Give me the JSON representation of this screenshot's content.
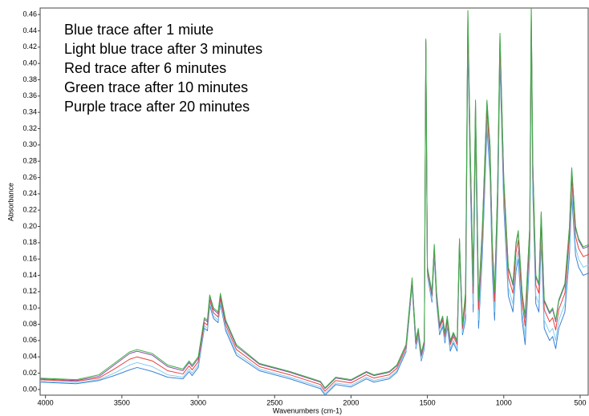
{
  "chart_data": {
    "type": "line",
    "xlabel": "Wavenumbers (cm-1)",
    "ylabel": "Absorbance",
    "annotations": [
      "Blue trace after 1 miute",
      "Light blue trace after 3 minutes",
      "Red trace after 6 minutes",
      "Green trace after 10 minutes",
      "Purple trace after 20 minutes"
    ],
    "xlim": [
      4035,
      442
    ],
    "ylim": [
      -0.007,
      0.468
    ],
    "xticks": [
      4000,
      3500,
      3000,
      2500,
      2000,
      1500,
      1000,
      500
    ],
    "yticks": [
      {
        "value": 0,
        "label": "0.00"
      },
      0.02,
      0.04,
      0.06,
      0.08,
      {
        "value": 0.1,
        "label": "0.10"
      },
      0.12,
      0.14,
      0.16,
      0.18,
      {
        "value": 0.2,
        "label": "0.20"
      },
      0.22,
      0.24,
      0.26,
      0.28,
      {
        "value": 0.3,
        "label": "0.30"
      },
      0.32,
      0.34,
      0.36,
      0.38,
      {
        "value": 0.4,
        "label": "0.40"
      },
      0.42,
      0.44,
      0.46
    ],
    "x": [
      4040,
      3800,
      3650,
      3550,
      3450,
      3400,
      3300,
      3200,
      3100,
      3060,
      3040,
      3000,
      2960,
      2940,
      2925,
      2900,
      2870,
      2855,
      2820,
      2750,
      2600,
      2400,
      2200,
      2170,
      2100,
      2000,
      1900,
      1850,
      1750,
      1700,
      1640,
      1600,
      1590,
      1575,
      1560,
      1540,
      1520,
      1510,
      1500,
      1470,
      1455,
      1440,
      1420,
      1400,
      1385,
      1370,
      1350,
      1330,
      1305,
      1290,
      1270,
      1250,
      1235,
      1220,
      1200,
      1185,
      1165,
      1140,
      1110,
      1090,
      1075,
      1060,
      1040,
      1025,
      1000,
      970,
      940,
      920,
      905,
      880,
      860,
      830,
      820,
      810,
      790,
      770,
      755,
      735,
      700,
      680,
      660,
      640,
      600,
      570,
      555,
      530,
      510,
      480,
      440
    ],
    "series": [
      {
        "color": "#3b82d6",
        "values": [
          0.009,
          0.007,
          0.011,
          0.017,
          0.024,
          0.027,
          0.022,
          0.015,
          0.013,
          0.022,
          0.017,
          0.027,
          0.075,
          0.072,
          0.103,
          0.087,
          0.082,
          0.105,
          0.072,
          0.042,
          0.023,
          0.013,
          0.001,
          -0.007,
          0.006,
          0.003,
          0.013,
          0.009,
          0.013,
          0.021,
          0.046,
          0.127,
          0.095,
          0.05,
          0.065,
          0.035,
          0.05,
          0.42,
          0.14,
          0.107,
          0.165,
          0.107,
          0.067,
          0.077,
          0.057,
          0.077,
          0.047,
          0.057,
          0.047,
          0.172,
          0.067,
          0.085,
          0.43,
          0.265,
          0.095,
          0.32,
          0.075,
          0.165,
          0.32,
          0.265,
          0.145,
          0.085,
          0.215,
          0.402,
          0.225,
          0.115,
          0.095,
          0.145,
          0.16,
          0.085,
          0.055,
          0.165,
          0.435,
          0.245,
          0.105,
          0.095,
          0.183,
          0.075,
          0.06,
          0.065,
          0.05,
          0.075,
          0.095,
          0.165,
          0.237,
          0.165,
          0.15,
          0.14,
          0.143
        ]
      },
      {
        "color": "#86cdf0",
        "values": [
          0.01,
          0.008,
          0.012,
          0.02,
          0.03,
          0.033,
          0.028,
          0.018,
          0.015,
          0.025,
          0.02,
          0.03,
          0.078,
          0.075,
          0.106,
          0.09,
          0.085,
          0.108,
          0.075,
          0.045,
          0.025,
          0.015,
          0.003,
          -0.005,
          0.008,
          0.005,
          0.015,
          0.011,
          0.015,
          0.023,
          0.048,
          0.129,
          0.097,
          0.052,
          0.067,
          0.037,
          0.052,
          0.422,
          0.142,
          0.11,
          0.168,
          0.11,
          0.07,
          0.08,
          0.06,
          0.08,
          0.05,
          0.06,
          0.05,
          0.175,
          0.07,
          0.095,
          0.44,
          0.275,
          0.105,
          0.33,
          0.085,
          0.175,
          0.33,
          0.275,
          0.155,
          0.095,
          0.225,
          0.412,
          0.235,
          0.125,
          0.105,
          0.155,
          0.17,
          0.095,
          0.065,
          0.175,
          0.445,
          0.255,
          0.115,
          0.105,
          0.193,
          0.085,
          0.07,
          0.075,
          0.06,
          0.085,
          0.105,
          0.175,
          0.247,
          0.175,
          0.16,
          0.15,
          0.153
        ]
      },
      {
        "color": "#e8413c",
        "values": [
          0.012,
          0.01,
          0.014,
          0.025,
          0.037,
          0.04,
          0.035,
          0.023,
          0.019,
          0.029,
          0.024,
          0.034,
          0.082,
          0.079,
          0.11,
          0.094,
          0.089,
          0.112,
          0.079,
          0.049,
          0.028,
          0.018,
          0.006,
          -0.002,
          0.011,
          0.008,
          0.018,
          0.014,
          0.018,
          0.026,
          0.051,
          0.133,
          0.101,
          0.056,
          0.071,
          0.041,
          0.056,
          0.426,
          0.146,
          0.115,
          0.173,
          0.115,
          0.075,
          0.085,
          0.065,
          0.085,
          0.055,
          0.065,
          0.055,
          0.18,
          0.075,
          0.108,
          0.453,
          0.288,
          0.118,
          0.343,
          0.098,
          0.188,
          0.343,
          0.288,
          0.168,
          0.108,
          0.238,
          0.425,
          0.248,
          0.138,
          0.118,
          0.168,
          0.183,
          0.108,
          0.078,
          0.188,
          0.458,
          0.268,
          0.128,
          0.118,
          0.206,
          0.098,
          0.083,
          0.088,
          0.073,
          0.098,
          0.118,
          0.188,
          0.26,
          0.188,
          0.173,
          0.163,
          0.166
        ]
      },
      {
        "color": "#8b4fa8",
        "values": [
          0.013,
          0.011,
          0.016,
          0.03,
          0.044,
          0.047,
          0.042,
          0.028,
          0.023,
          0.033,
          0.028,
          0.038,
          0.086,
          0.083,
          0.114,
          0.098,
          0.093,
          0.116,
          0.083,
          0.053,
          0.031,
          0.021,
          0.009,
          0.001,
          0.014,
          0.011,
          0.021,
          0.017,
          0.021,
          0.029,
          0.054,
          0.135,
          0.103,
          0.058,
          0.073,
          0.043,
          0.058,
          0.428,
          0.148,
          0.118,
          0.176,
          0.118,
          0.078,
          0.088,
          0.068,
          0.088,
          0.058,
          0.068,
          0.058,
          0.183,
          0.078,
          0.118,
          0.463,
          0.298,
          0.128,
          0.353,
          0.108,
          0.198,
          0.353,
          0.298,
          0.178,
          0.118,
          0.248,
          0.435,
          0.258,
          0.148,
          0.128,
          0.178,
          0.193,
          0.118,
          0.088,
          0.198,
          0.468,
          0.278,
          0.138,
          0.128,
          0.216,
          0.108,
          0.093,
          0.098,
          0.083,
          0.108,
          0.128,
          0.198,
          0.27,
          0.198,
          0.183,
          0.173,
          0.176
        ]
      },
      {
        "color": "#3cb043",
        "values": [
          0.014,
          0.012,
          0.018,
          0.032,
          0.046,
          0.049,
          0.044,
          0.03,
          0.025,
          0.035,
          0.03,
          0.04,
          0.088,
          0.085,
          0.116,
          0.1,
          0.095,
          0.118,
          0.085,
          0.055,
          0.032,
          0.022,
          0.01,
          0.002,
          0.015,
          0.012,
          0.022,
          0.018,
          0.022,
          0.03,
          0.055,
          0.137,
          0.105,
          0.06,
          0.075,
          0.045,
          0.06,
          0.43,
          0.15,
          0.12,
          0.178,
          0.12,
          0.08,
          0.09,
          0.07,
          0.09,
          0.06,
          0.07,
          0.06,
          0.185,
          0.08,
          0.12,
          0.465,
          0.3,
          0.13,
          0.355,
          0.11,
          0.2,
          0.355,
          0.3,
          0.18,
          0.12,
          0.25,
          0.437,
          0.26,
          0.15,
          0.13,
          0.18,
          0.195,
          0.12,
          0.09,
          0.2,
          0.47,
          0.28,
          0.14,
          0.13,
          0.218,
          0.11,
          0.095,
          0.1,
          0.085,
          0.11,
          0.13,
          0.2,
          0.272,
          0.2,
          0.185,
          0.175,
          0.178
        ]
      }
    ]
  }
}
